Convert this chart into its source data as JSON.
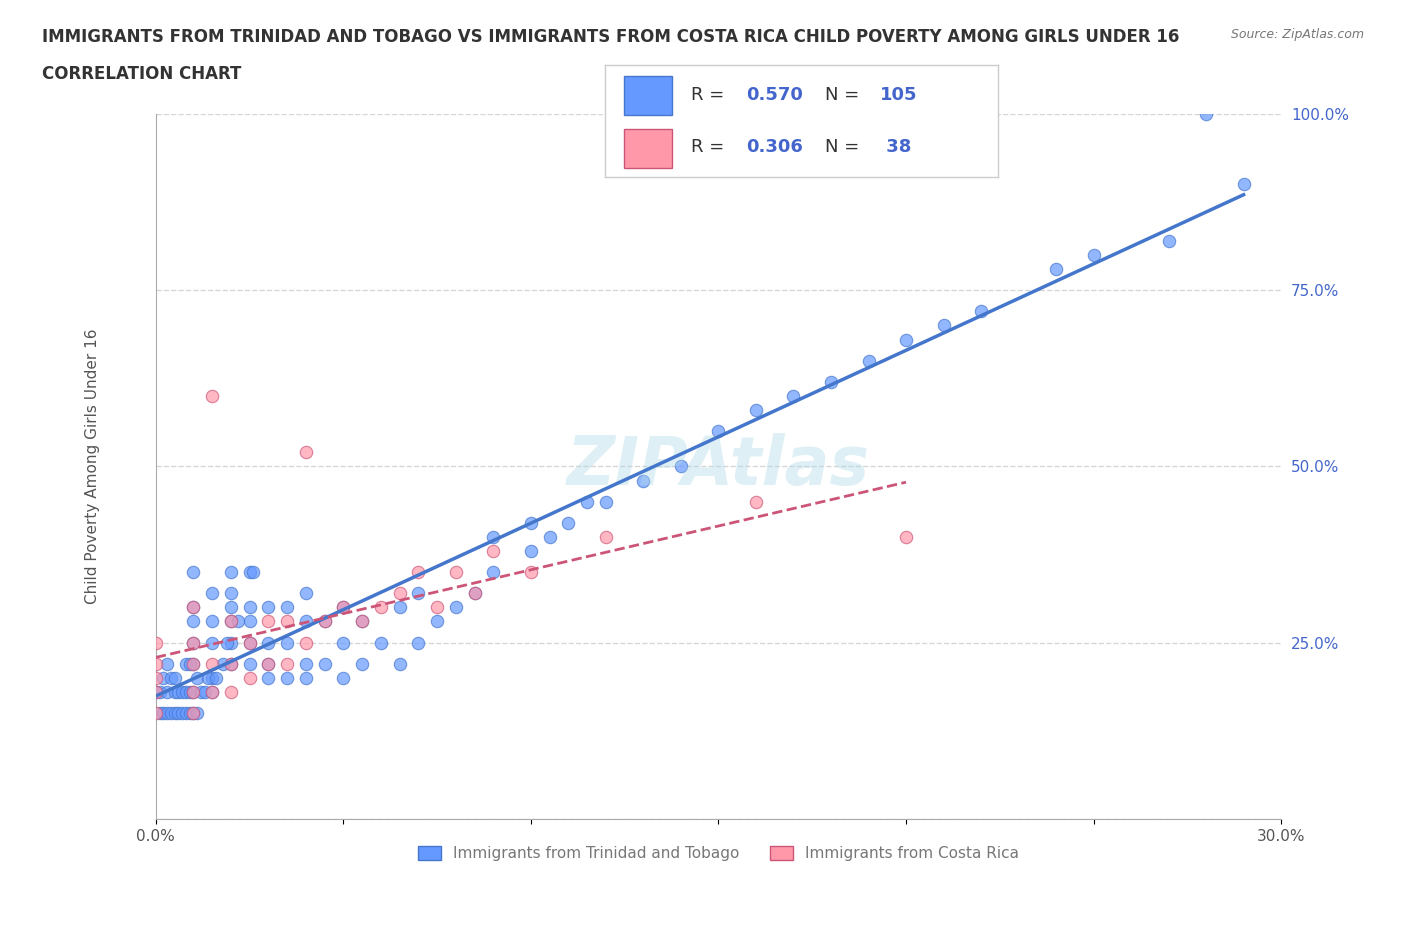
{
  "title_line1": "IMMIGRANTS FROM TRINIDAD AND TOBAGO VS IMMIGRANTS FROM COSTA RICA CHILD POVERTY AMONG GIRLS UNDER 16",
  "title_line2": "CORRELATION CHART",
  "source_text": "Source: ZipAtlas.com",
  "xlabel": "",
  "ylabel": "Child Poverty Among Girls Under 16",
  "xlim": [
    0.0,
    0.3
  ],
  "ylim": [
    0.0,
    1.0
  ],
  "xticks": [
    0.0,
    0.05,
    0.1,
    0.15,
    0.2,
    0.25,
    0.3
  ],
  "xticklabels": [
    "0.0%",
    "",
    "",
    "",
    "",
    "",
    "30.0%"
  ],
  "yticks": [
    0.0,
    0.25,
    0.5,
    0.75,
    1.0
  ],
  "yticklabels": [
    "",
    "25.0%",
    "50.0%",
    "75.0%",
    "100.0%"
  ],
  "series1_color": "#6699ff",
  "series1_edge": "#4477cc",
  "series2_color": "#ff99aa",
  "series2_edge": "#cc5577",
  "series1_R": 0.57,
  "series1_N": 105,
  "series2_R": 0.306,
  "series2_N": 38,
  "series1_label": "Immigrants from Trinidad and Tobago",
  "series2_label": "Immigrants from Costa Rica",
  "legend_color": "#4466cc",
  "watermark": "ZIPAtlas",
  "background_color": "#ffffff",
  "grid_color": "#cccccc",
  "title_color": "#333333",
  "series1_x": [
    0.0,
    0.01,
    0.01,
    0.01,
    0.01,
    0.01,
    0.015,
    0.015,
    0.015,
    0.015,
    0.02,
    0.02,
    0.02,
    0.02,
    0.02,
    0.02,
    0.025,
    0.025,
    0.025,
    0.025,
    0.025,
    0.03,
    0.03,
    0.03,
    0.03,
    0.035,
    0.035,
    0.035,
    0.04,
    0.04,
    0.04,
    0.04,
    0.045,
    0.045,
    0.05,
    0.05,
    0.05,
    0.055,
    0.055,
    0.06,
    0.065,
    0.065,
    0.07,
    0.07,
    0.075,
    0.08,
    0.085,
    0.09,
    0.09,
    0.1,
    0.1,
    0.105,
    0.11,
    0.115,
    0.12,
    0.13,
    0.14,
    0.15,
    0.16,
    0.17,
    0.18,
    0.19,
    0.2,
    0.21,
    0.22,
    0.24,
    0.25,
    0.27,
    0.29,
    0.001,
    0.001,
    0.002,
    0.002,
    0.003,
    0.003,
    0.003,
    0.004,
    0.004,
    0.005,
    0.005,
    0.005,
    0.006,
    0.006,
    0.007,
    0.007,
    0.008,
    0.008,
    0.008,
    0.009,
    0.009,
    0.009,
    0.01,
    0.01,
    0.011,
    0.011,
    0.012,
    0.013,
    0.014,
    0.015,
    0.016,
    0.018,
    0.019,
    0.022,
    0.026,
    0.28
  ],
  "series1_y": [
    0.18,
    0.22,
    0.25,
    0.28,
    0.3,
    0.35,
    0.2,
    0.25,
    0.28,
    0.32,
    0.22,
    0.25,
    0.28,
    0.3,
    0.32,
    0.35,
    0.22,
    0.25,
    0.28,
    0.3,
    0.35,
    0.2,
    0.22,
    0.25,
    0.3,
    0.2,
    0.25,
    0.3,
    0.2,
    0.22,
    0.28,
    0.32,
    0.22,
    0.28,
    0.2,
    0.25,
    0.3,
    0.22,
    0.28,
    0.25,
    0.22,
    0.3,
    0.25,
    0.32,
    0.28,
    0.3,
    0.32,
    0.35,
    0.4,
    0.38,
    0.42,
    0.4,
    0.42,
    0.45,
    0.45,
    0.48,
    0.5,
    0.55,
    0.58,
    0.6,
    0.62,
    0.65,
    0.68,
    0.7,
    0.72,
    0.78,
    0.8,
    0.82,
    0.9,
    0.15,
    0.18,
    0.15,
    0.2,
    0.15,
    0.18,
    0.22,
    0.15,
    0.2,
    0.15,
    0.18,
    0.2,
    0.15,
    0.18,
    0.15,
    0.18,
    0.15,
    0.18,
    0.22,
    0.15,
    0.18,
    0.22,
    0.15,
    0.18,
    0.15,
    0.2,
    0.18,
    0.18,
    0.2,
    0.18,
    0.2,
    0.22,
    0.25,
    0.28,
    0.35,
    1.0
  ],
  "series2_x": [
    0.0,
    0.0,
    0.0,
    0.0,
    0.0,
    0.01,
    0.01,
    0.01,
    0.01,
    0.01,
    0.015,
    0.015,
    0.015,
    0.02,
    0.02,
    0.02,
    0.025,
    0.025,
    0.03,
    0.03,
    0.035,
    0.035,
    0.04,
    0.04,
    0.045,
    0.05,
    0.055,
    0.06,
    0.065,
    0.07,
    0.075,
    0.08,
    0.085,
    0.09,
    0.1,
    0.12,
    0.16,
    0.2
  ],
  "series2_y": [
    0.15,
    0.18,
    0.2,
    0.22,
    0.25,
    0.15,
    0.18,
    0.22,
    0.25,
    0.3,
    0.18,
    0.22,
    0.6,
    0.18,
    0.22,
    0.28,
    0.2,
    0.25,
    0.22,
    0.28,
    0.22,
    0.28,
    0.25,
    0.52,
    0.28,
    0.3,
    0.28,
    0.3,
    0.32,
    0.35,
    0.3,
    0.35,
    0.32,
    0.38,
    0.35,
    0.4,
    0.45,
    0.4
  ]
}
